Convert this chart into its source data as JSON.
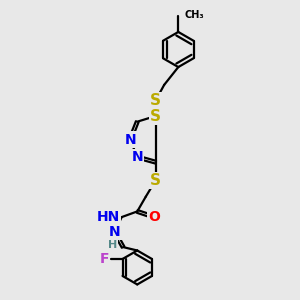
{
  "bg_color": "#e8e8e8",
  "bond_color": "#000000",
  "N_color": "#0000ee",
  "S_color": "#bbaa00",
  "O_color": "#ff0000",
  "F_color": "#bb44cc",
  "H_color": "#558888",
  "line_width": 1.6,
  "font_size_atom": 10,
  "title": "",
  "xlim": [
    -0.5,
    4.5
  ],
  "ylim": [
    -1.0,
    9.5
  ]
}
